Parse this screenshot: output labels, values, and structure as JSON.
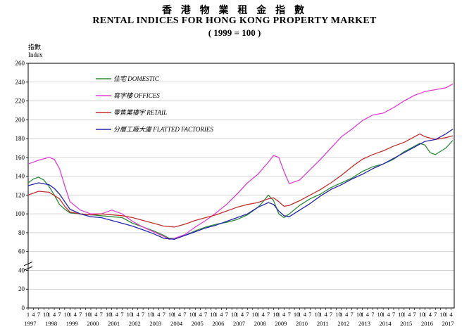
{
  "titles": {
    "chinese": "香 港 物 業 租 金 指 數",
    "english": "RENTAL INDICES FOR HONG KONG PROPERTY MARKET",
    "base": "( 1999 = 100 )"
  },
  "chart_data": {
    "type": "line",
    "title": "RENTAL INDICES FOR HONG KONG PROPERTY MARKET",
    "subtitle": "( 1999 = 100 )",
    "ylabel_chinese": "指數",
    "ylabel": "Index",
    "ylim": [
      0,
      260
    ],
    "yticks": [
      0,
      20,
      40,
      60,
      80,
      100,
      120,
      140,
      160,
      180,
      200,
      220,
      240,
      260
    ],
    "axis_break": true,
    "grid": true,
    "legend_position": "top-left",
    "x_quarter_labels": [
      "1",
      "4",
      "7",
      "10"
    ],
    "x_years": [
      "1997",
      "1998",
      "1999",
      "2000",
      "2001",
      "2002",
      "2003",
      "2004",
      "2005",
      "2006",
      "2007",
      "2008",
      "2009",
      "2010",
      "2011",
      "2012",
      "2013",
      "2014",
      "2015",
      "2016",
      "2017"
    ],
    "series": [
      {
        "name": "住宅 DOMESTIC",
        "color": "#2e8b3a",
        "x": [
          1997.0,
          1997.25,
          1997.5,
          1997.75,
          1998.0,
          1998.25,
          1998.5,
          1998.75,
          1999.0,
          1999.5,
          2000.0,
          2000.5,
          2001.0,
          2001.5,
          2002.0,
          2002.5,
          2003.0,
          2003.5,
          2003.75,
          2004.0,
          2004.5,
          2005.0,
          2005.5,
          2006.0,
          2006.5,
          2007.0,
          2007.5,
          2008.0,
          2008.25,
          2008.5,
          2008.75,
          2009.0,
          2009.25,
          2009.5,
          2010.0,
          2010.5,
          2011.0,
          2011.5,
          2012.0,
          2012.5,
          2013.0,
          2013.5,
          2014.0,
          2014.5,
          2015.0,
          2015.5,
          2015.75,
          2016.0,
          2016.25,
          2016.5,
          2017.0,
          2017.33
        ],
        "values": [
          133,
          137,
          139,
          136,
          129,
          120,
          110,
          105,
          101,
          100,
          99,
          98,
          97,
          96,
          90,
          86,
          82,
          77,
          74,
          74,
          77,
          82,
          86,
          89,
          91,
          94,
          99,
          107,
          113,
          120,
          114,
          100,
          96,
          100,
          109,
          116,
          121,
          128,
          133,
          138,
          145,
          150,
          153,
          158,
          166,
          172,
          175,
          173,
          165,
          163,
          170,
          178
        ]
      },
      {
        "name": "寫字樓 OFFICES",
        "color": "#e040d0",
        "x": [
          1997.0,
          1997.5,
          1998.0,
          1998.25,
          1998.5,
          1998.75,
          1999.0,
          1999.5,
          2000.0,
          2000.5,
          2001.0,
          2001.5,
          2002.0,
          2002.5,
          2003.0,
          2003.5,
          2003.75,
          2004.0,
          2004.5,
          2005.0,
          2005.5,
          2006.0,
          2006.5,
          2007.0,
          2007.5,
          2008.0,
          2008.5,
          2008.75,
          2009.0,
          2009.25,
          2009.5,
          2010.0,
          2010.5,
          2011.0,
          2011.5,
          2012.0,
          2012.5,
          2013.0,
          2013.5,
          2014.0,
          2014.5,
          2015.0,
          2015.5,
          2016.0,
          2016.5,
          2017.0,
          2017.33
        ],
        "values": [
          153,
          157,
          160,
          158,
          148,
          130,
          113,
          104,
          100,
          100,
          104,
          100,
          92,
          86,
          81,
          76,
          73,
          74,
          78,
          86,
          93,
          101,
          110,
          121,
          133,
          142,
          155,
          162,
          160,
          145,
          132,
          136,
          147,
          158,
          170,
          182,
          190,
          199,
          205,
          207,
          213,
          220,
          226,
          230,
          232,
          234,
          238
        ]
      },
      {
        "name": "零售業樓宇 RETAIL",
        "color": "#c03030",
        "x": [
          1997.0,
          1997.5,
          1998.0,
          1998.5,
          1998.75,
          1999.0,
          1999.5,
          2000.0,
          2000.5,
          2001.0,
          2001.5,
          2002.0,
          2002.5,
          2003.0,
          2003.5,
          2004.0,
          2004.5,
          2005.0,
          2005.5,
          2006.0,
          2006.5,
          2007.0,
          2007.5,
          2008.0,
          2008.5,
          2008.75,
          2009.0,
          2009.25,
          2009.5,
          2010.0,
          2010.5,
          2011.0,
          2011.5,
          2012.0,
          2012.5,
          2013.0,
          2013.5,
          2014.0,
          2014.5,
          2015.0,
          2015.5,
          2015.75,
          2016.0,
          2016.5,
          2017.0,
          2017.33
        ],
        "values": [
          120,
          124,
          123,
          116,
          108,
          102,
          100,
          99,
          100,
          99,
          98,
          96,
          93,
          90,
          87,
          86,
          89,
          93,
          96,
          99,
          103,
          107,
          110,
          112,
          116,
          117,
          113,
          108,
          109,
          114,
          120,
          126,
          133,
          141,
          150,
          158,
          163,
          167,
          172,
          176,
          182,
          185,
          182,
          179,
          181,
          183
        ]
      },
      {
        "name": "分層工廠大廈 FLATTED FACTORIES",
        "color": "#2626a8",
        "x": [
          1997.0,
          1997.5,
          1998.0,
          1998.25,
          1998.5,
          1998.75,
          1999.0,
          1999.5,
          2000.0,
          2000.5,
          2001.0,
          2001.5,
          2002.0,
          2002.5,
          2003.0,
          2003.5,
          2004.0,
          2004.5,
          2005.0,
          2005.5,
          2006.0,
          2006.5,
          2007.0,
          2007.5,
          2008.0,
          2008.5,
          2008.75,
          2009.0,
          2009.25,
          2009.5,
          2010.0,
          2010.5,
          2011.0,
          2011.5,
          2012.0,
          2012.5,
          2013.0,
          2013.5,
          2014.0,
          2014.5,
          2015.0,
          2015.5,
          2016.0,
          2016.5,
          2017.0,
          2017.33
        ],
        "values": [
          130,
          133,
          131,
          127,
          121,
          113,
          105,
          100,
          97,
          96,
          93,
          90,
          87,
          83,
          79,
          74,
          73,
          77,
          81,
          85,
          88,
          92,
          96,
          100,
          107,
          112,
          110,
          103,
          98,
          97,
          104,
          111,
          119,
          126,
          131,
          137,
          142,
          148,
          153,
          159,
          165,
          171,
          177,
          179,
          185,
          190
        ]
      }
    ]
  }
}
